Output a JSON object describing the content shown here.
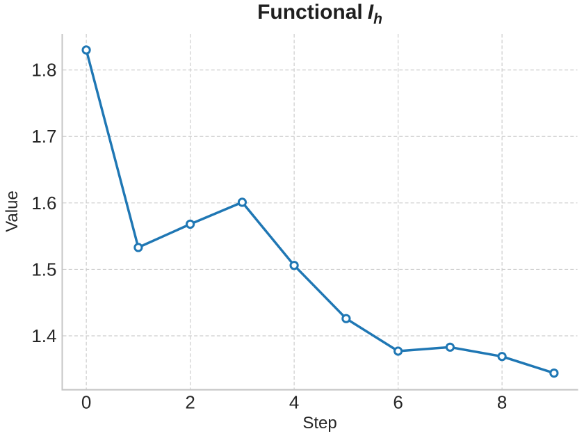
{
  "figure": {
    "background": "#ffffff",
    "title": {
      "prefix": "Functional",
      "math_base": "I",
      "math_sub": "h"
    }
  },
  "chart_data": {
    "type": "line",
    "title": "Functional I_h",
    "xlabel": "Step",
    "ylabel": "Value",
    "x": [
      0,
      1,
      2,
      3,
      4,
      5,
      6,
      7,
      8,
      9
    ],
    "y": [
      1.83,
      1.533,
      1.568,
      1.601,
      1.506,
      1.426,
      1.377,
      1.383,
      1.369,
      1.344
    ],
    "x_ticks": [
      0,
      2,
      4,
      6,
      8
    ],
    "y_ticks": [
      1.4,
      1.5,
      1.6,
      1.7,
      1.8
    ],
    "y_tick_decimals": 1,
    "xlim": [
      -0.45,
      9.45
    ],
    "ylim": [
      1.32,
      1.854
    ],
    "grid": true,
    "grid_style": "dashed",
    "legend": "none",
    "colors": {
      "line": "#1f77b4",
      "marker_fill": "#ffffff",
      "grid": "#cdcdcd",
      "spine": "#c6c6c6",
      "text": "#262626"
    }
  }
}
